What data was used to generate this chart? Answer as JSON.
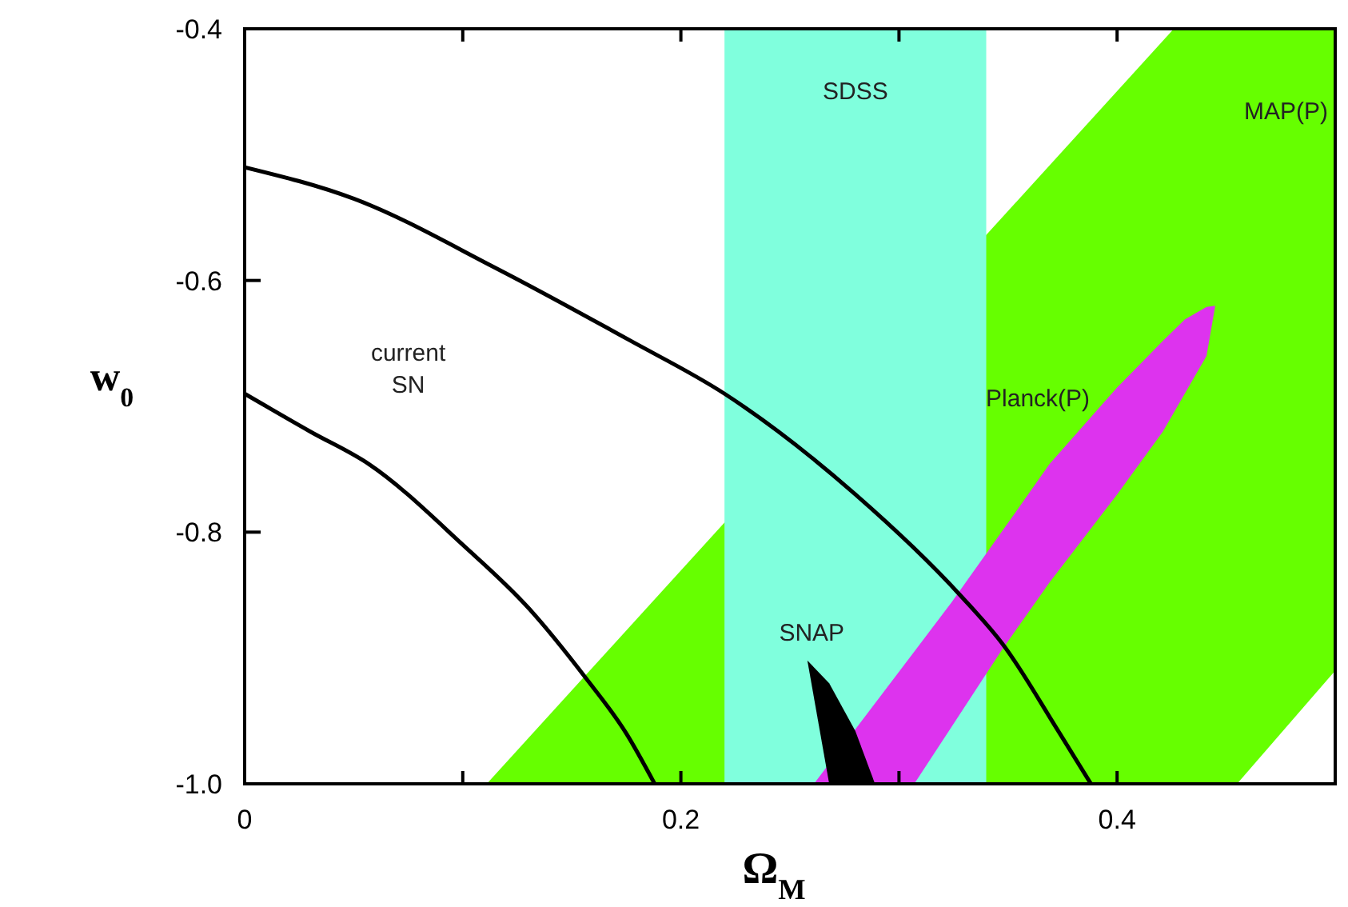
{
  "chart_data": {
    "type": "area",
    "xlabel": "Ω$_{M}$",
    "ylabel": "w$_{0}$",
    "xlim": [
      0,
      0.5
    ],
    "ylim": [
      -1,
      -0.4
    ],
    "xticks": [
      0,
      {
        "value": 0.1,
        "label": null
      },
      0.2,
      {
        "value": 0.3,
        "label": null
      },
      0.4
    ],
    "yticks": [
      {
        "value": -1,
        "label": "-1.0"
      },
      {
        "value": -0.8,
        "label": "-0.8"
      },
      {
        "value": -0.6,
        "label": "-0.6"
      },
      {
        "value": -0.4,
        "label": "-0.4"
      }
    ],
    "grid": false,
    "bands": [
      {
        "axis": "x",
        "from": 0.22,
        "to": 0.34,
        "label": "SDSS",
        "color": "#80ffdd"
      }
    ],
    "series": [
      {
        "name": "MAP(P)",
        "color": "#66ff00",
        "x": [
          0.111,
          0.426,
          0.5,
          0.5,
          0.455
        ],
        "values": [
          -1.0,
          -0.4,
          -0.4,
          -0.91,
          -1.0
        ]
      },
      {
        "name": "Planck(P)",
        "color": "#dd33ee",
        "x": [
          0.261,
          0.307,
          0.324,
          0.347,
          0.369,
          0.4,
          0.421,
          0.431,
          0.441,
          0.445,
          0.441,
          0.431,
          0.421,
          0.4,
          0.369,
          0.347,
          0.324,
          0.307
        ],
        "values": [
          -1.0,
          -0.895,
          -0.856,
          -0.8,
          -0.746,
          -0.685,
          -0.648,
          -0.631,
          -0.621,
          -0.62,
          -0.66,
          -0.69,
          -0.72,
          -0.77,
          -0.84,
          -0.894,
          -0.955,
          -1.0
        ]
      },
      {
        "name": "SNAP",
        "color": "#000000",
        "x": [
          0.258,
          0.268,
          0.28,
          0.289,
          0.268
        ],
        "values": [
          -0.902,
          -0.92,
          -0.958,
          -1.0,
          -1.0
        ]
      },
      {
        "type": "line",
        "color": "#000000",
        "x": [
          0,
          0.05,
          0.115,
          0.177,
          0.22,
          0.28,
          0.328,
          0.348,
          0.373,
          0.388
        ],
        "values": [
          -0.51,
          -0.535,
          -0.59,
          -0.648,
          -0.69,
          -0.77,
          -0.85,
          -0.89,
          -0.958,
          -1.0
        ]
      },
      {
        "type": "line",
        "name": "current SN",
        "color": "#000000",
        "x": [
          0,
          0.03,
          0.057,
          0.1,
          0.13,
          0.156,
          0.175,
          0.188
        ],
        "values": [
          -0.69,
          -0.72,
          -0.746,
          -0.81,
          -0.86,
          -0.915,
          -0.96,
          -1.0
        ]
      }
    ]
  }
}
